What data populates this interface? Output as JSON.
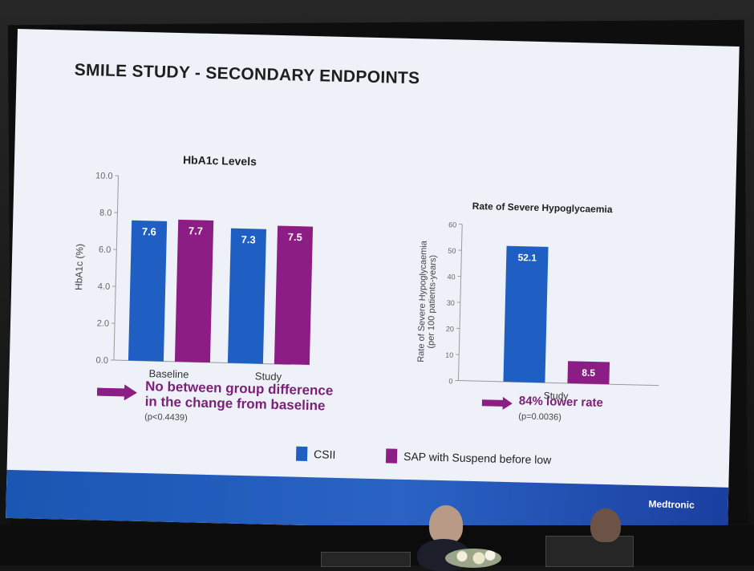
{
  "slide": {
    "title": "SMILE STUDY  -  SECONDARY ENDPOINTS",
    "brand": "Medtronic"
  },
  "colors": {
    "csii": "#1f5fc4",
    "sap": "#8c1d85",
    "callout": "#7b1f78",
    "slide_bg": "#eef1f8"
  },
  "chart_data": [
    {
      "type": "bar",
      "title": "HbA1c Levels",
      "ylabel": "HbA1c (%)",
      "xlabel": "",
      "ylim": [
        0,
        10
      ],
      "yticks": [
        "0.0",
        "2.0",
        "4.0",
        "6.0",
        "8.0",
        "10.0"
      ],
      "categories": [
        "Baseline",
        "Study"
      ],
      "series": [
        {
          "name": "CSII",
          "values": [
            7.6,
            7.3
          ],
          "labels": [
            "7.6",
            "7.3"
          ]
        },
        {
          "name": "SAP with Suspend before low",
          "values": [
            7.7,
            7.5
          ],
          "labels": [
            "7.7",
            "7.5"
          ]
        }
      ],
      "grid": false
    },
    {
      "type": "bar",
      "title": "Rate of Severe Hypoglycaemia",
      "ylabel": "Rate of Severe Hypoglycaemia",
      "ylabel2": "(per 100 patients-years)",
      "xlabel": "",
      "ylim": [
        0,
        60
      ],
      "yticks": [
        "0",
        "10",
        "20",
        "30",
        "40",
        "50",
        "60"
      ],
      "categories": [
        "Study"
      ],
      "series": [
        {
          "name": "CSII",
          "values": [
            52.1
          ],
          "labels": [
            "52.1"
          ]
        },
        {
          "name": "SAP with Suspend before low",
          "values": [
            8.5
          ],
          "labels": [
            "8.5"
          ]
        }
      ],
      "grid": false
    }
  ],
  "callouts": {
    "left": {
      "line1": "No between group difference",
      "line2": "in the change from baseline",
      "pvalue": "(p<0.4439)"
    },
    "right": {
      "text": "84% lower rate",
      "pvalue": "(p=0.0036)"
    }
  },
  "legend": [
    {
      "label": "CSII"
    },
    {
      "label": "SAP with Suspend before low"
    }
  ]
}
